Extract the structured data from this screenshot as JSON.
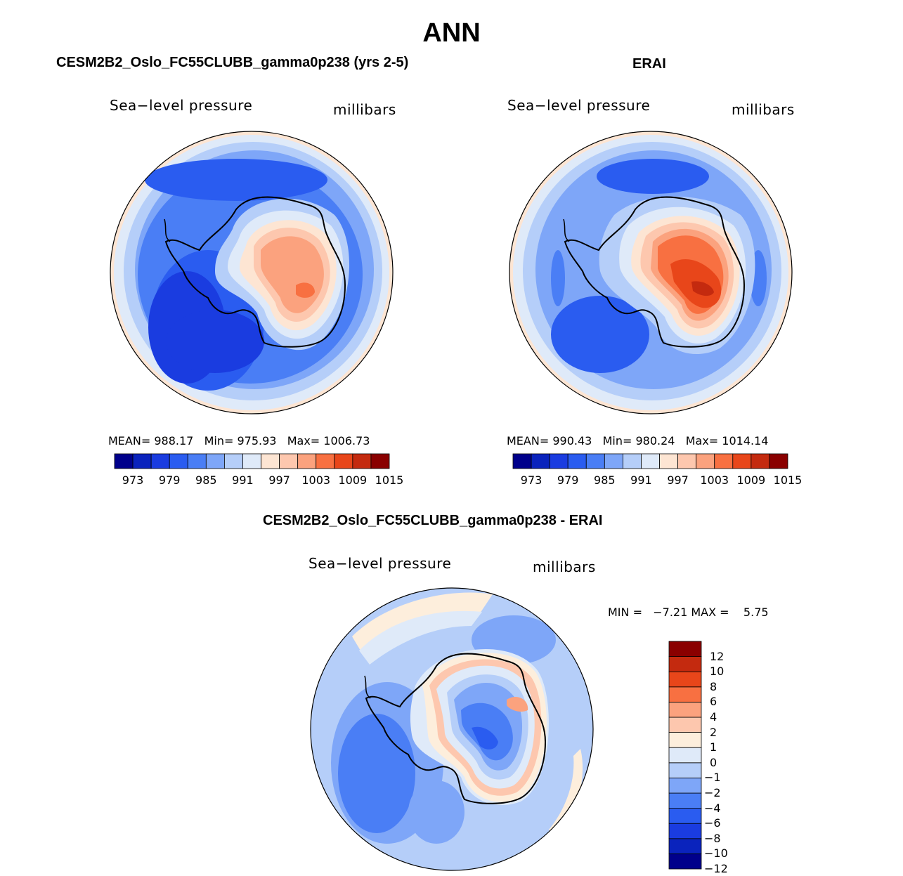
{
  "title": "ANN",
  "colors": {
    "levels15": [
      "#00008b",
      "#0a23bd",
      "#1a3ce0",
      "#2a5cf0",
      "#4a7ef5",
      "#7ea6f8",
      "#b5cef9",
      "#dfeaf9",
      "#fde5d3",
      "#fdc7ae",
      "#fba27e",
      "#f87041",
      "#e8461a",
      "#c42a0f",
      "#8a0000"
    ],
    "diff14": [
      "#00008b",
      "#0a23bd",
      "#1a3ce0",
      "#2a5cf0",
      "#4a7ef5",
      "#7ea6f8",
      "#b5cef9",
      "#dfeaf9",
      "#fdeedc",
      "#fdc7ae",
      "#fba27e",
      "#f87041",
      "#e8461a",
      "#c42a0f",
      "#8a0000"
    ]
  },
  "panels": [
    {
      "title": "CESM2B2_Oslo_FC55CLUBB_gamma0p238 (yrs 2-5)",
      "variable": "Sea−level pressure",
      "units": "millibars",
      "stats": {
        "mean_label": "MEAN=",
        "mean": "988.17",
        "min_label": "Min=",
        "min": "975.93",
        "max_label": "Max=",
        "max": "1006.73"
      },
      "ticks": [
        "973",
        "979",
        "985",
        "991",
        "997",
        "1003",
        "1009",
        "1015"
      ]
    },
    {
      "title": "ERAI",
      "variable": "Sea−level pressure",
      "units": "millibars",
      "stats": {
        "mean_label": "MEAN=",
        "mean": "990.43",
        "min_label": "Min=",
        "min": "980.24",
        "max_label": "Max=",
        "max": "1014.14"
      },
      "ticks": [
        "973",
        "979",
        "985",
        "991",
        "997",
        "1003",
        "1009",
        "1015"
      ]
    }
  ],
  "diff": {
    "title": "CESM2B2_Oslo_FC55CLUBB_gamma0p238 - ERAI",
    "variable": "Sea−level pressure",
    "units": "millibars",
    "min_label": "MIN =",
    "min": "−7.21",
    "max_label": "MAX =",
    "max": "5.75",
    "ticks": [
      "12",
      "10",
      "8",
      "6",
      "4",
      "2",
      "1",
      "0",
      "−1",
      "−2",
      "−4",
      "−6",
      "−8",
      "−10",
      "−12"
    ]
  }
}
